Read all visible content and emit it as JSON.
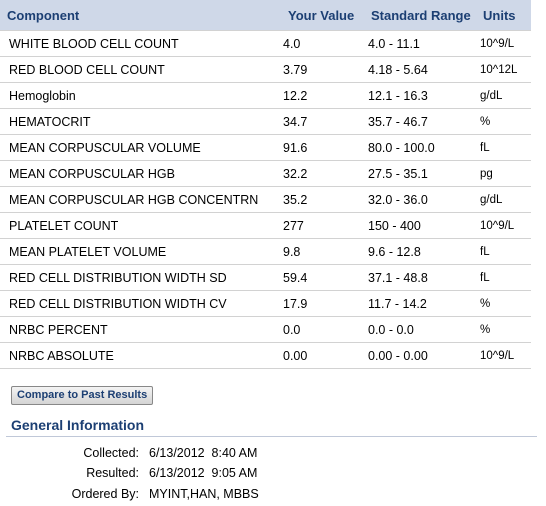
{
  "table": {
    "headers": {
      "component": "Component",
      "your_value": "Your Value",
      "standard_range": "Standard Range",
      "units": "Units"
    },
    "rows": [
      {
        "component": "WHITE BLOOD CELL COUNT",
        "value": "4.0",
        "range": "4.0 - 11.1",
        "units": "10^9/L"
      },
      {
        "component": "RED BLOOD CELL COUNT",
        "value": "3.79",
        "range": "4.18 - 5.64",
        "units": "10^12L"
      },
      {
        "component": "Hemoglobin",
        "value": "12.2",
        "range": "12.1 - 16.3",
        "units": "g/dL"
      },
      {
        "component": "HEMATOCRIT",
        "value": "34.7",
        "range": "35.7 - 46.7",
        "units": "%"
      },
      {
        "component": "MEAN CORPUSCULAR VOLUME",
        "value": "91.6",
        "range": "80.0 - 100.0",
        "units": "fL"
      },
      {
        "component": "MEAN CORPUSCULAR HGB",
        "value": "32.2",
        "range": "27.5 - 35.1",
        "units": "pg"
      },
      {
        "component": "MEAN CORPUSCULAR HGB CONCENTRN",
        "value": "35.2",
        "range": "32.0 - 36.0",
        "units": "g/dL"
      },
      {
        "component": "PLATELET COUNT",
        "value": "277",
        "range": "150 - 400",
        "units": "10^9/L"
      },
      {
        "component": "MEAN PLATELET VOLUME",
        "value": "9.8",
        "range": "9.6 - 12.8",
        "units": "fL"
      },
      {
        "component": "RED CELL DISTRIBUTION WIDTH SD",
        "value": "59.4",
        "range": "37.1 - 48.8",
        "units": "fL"
      },
      {
        "component": "RED CELL DISTRIBUTION WIDTH CV",
        "value": "17.9",
        "range": "11.7 - 14.2",
        "units": "%"
      },
      {
        "component": "NRBC PERCENT",
        "value": "0.0",
        "range": "0.0 - 0.0",
        "units": "%"
      },
      {
        "component": "NRBC ABSOLUTE",
        "value": "0.00",
        "range": "0.00 - 0.00",
        "units": "10^9/L"
      }
    ]
  },
  "compare_button": "Compare to Past Results",
  "general_info": {
    "title": "General Information",
    "collected_label": "Collected:",
    "collected_value": "6/13/2012  8:40 AM",
    "resulted_label": "Resulted:",
    "resulted_value": "6/13/2012  9:05 AM",
    "ordered_by_label": "Ordered By:",
    "ordered_by_value": "MYINT,HAN, MBBS"
  },
  "colors": {
    "header_bg": "#cfd8e8",
    "header_text": "#1c3f73",
    "row_border": "#d2d2d2"
  }
}
